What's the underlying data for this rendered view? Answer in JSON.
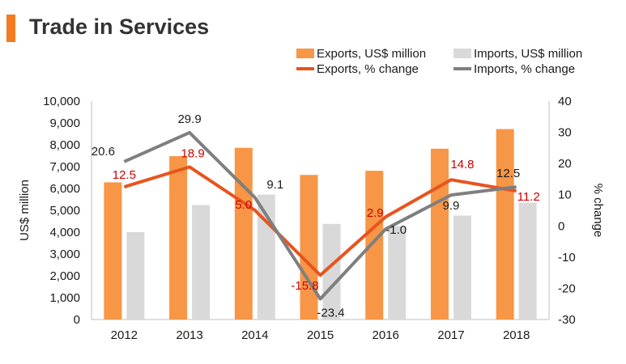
{
  "page": {
    "title": "Trade in Services",
    "accent_color": "#f47b20"
  },
  "chart_data": {
    "type": "bar",
    "categories": [
      "2012",
      "2013",
      "2014",
      "2015",
      "2016",
      "2017",
      "2018"
    ],
    "series": [
      {
        "name": "Exports, US$ million",
        "kind": "bar",
        "axis": "left",
        "color": "#f79646",
        "values": [
          6280,
          7480,
          7860,
          6620,
          6810,
          7820,
          8720
        ]
      },
      {
        "name": "Imports, US$ million",
        "kind": "bar",
        "axis": "left",
        "color": "#d9d9d9",
        "values": [
          4000,
          5240,
          5720,
          4380,
          4270,
          4760,
          5350
        ]
      },
      {
        "name": "Exports, % change",
        "kind": "line",
        "axis": "right",
        "color": "#e8541e",
        "values": [
          12.5,
          18.9,
          5.0,
          -15.8,
          2.9,
          14.8,
          11.2
        ],
        "labels": [
          "12.5",
          "18.9",
          "5.0",
          "-15.8",
          "2.9",
          "14.8",
          "11.2"
        ],
        "label_color": "#cc0000"
      },
      {
        "name": "Imports, % change",
        "kind": "line",
        "axis": "right",
        "color": "#7f7f7f",
        "values": [
          20.6,
          29.9,
          9.1,
          -23.4,
          -1.0,
          9.9,
          12.5
        ],
        "labels": [
          "20.6",
          "29.9",
          "9.1",
          "-23.4",
          "-1.0",
          "9.9",
          "12.5"
        ],
        "label_color": "#1a1a1a"
      }
    ],
    "ylabel": "US$ million",
    "ylabel_right": "% change",
    "ylim": [
      0,
      10000
    ],
    "ylim_right": [
      -30,
      40
    ],
    "yticks": [
      "0",
      "1,000",
      "2,000",
      "3,000",
      "4,000",
      "5,000",
      "6,000",
      "7,000",
      "8,000",
      "9,000",
      "10,000"
    ],
    "yticks_right": [
      "-30",
      "-20",
      "-10",
      "0",
      "10",
      "20",
      "30",
      "40"
    ],
    "grid": false,
    "legend_position": "top-right"
  }
}
